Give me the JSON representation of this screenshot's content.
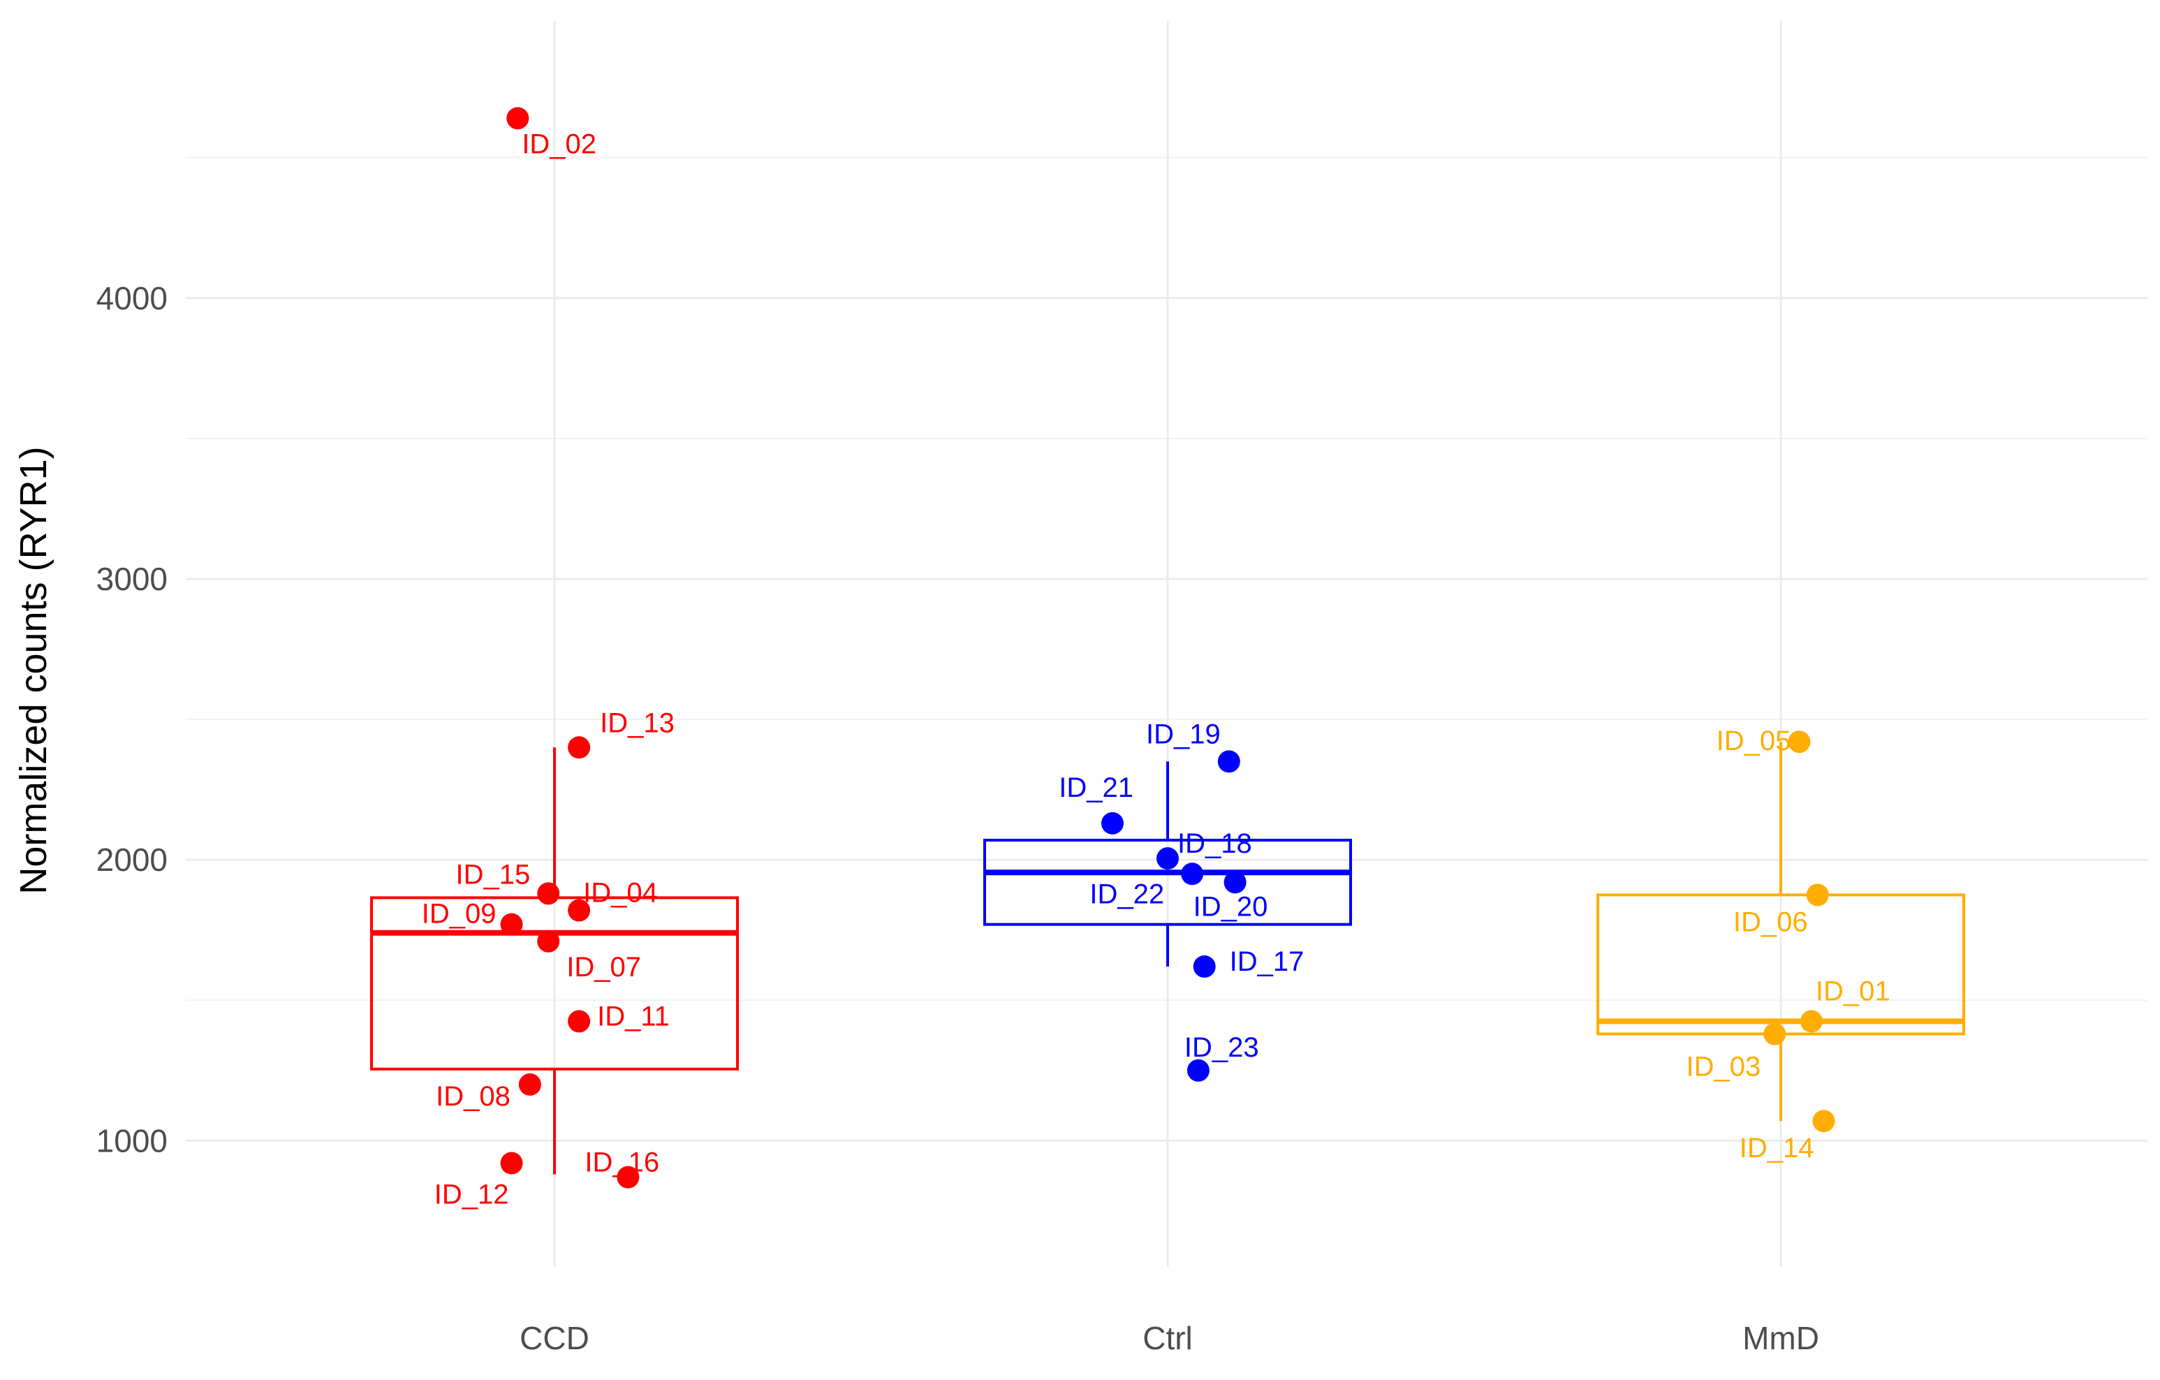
{
  "chart_data": {
    "type": "box",
    "title": "",
    "xlabel": "",
    "ylabel": "Normalized counts (RYR1)",
    "ylim": [
      700,
      4800
    ],
    "yticks": [
      1000,
      2000,
      3000,
      4000
    ],
    "categories": [
      "CCD",
      "Ctrl",
      "MmD"
    ],
    "colors": {
      "CCD": "#ff0000",
      "Ctrl": "#0000ff",
      "MmD": "#ffad00"
    },
    "boxes": [
      {
        "group": "CCD",
        "q1": 1255,
        "median": 1740,
        "q3": 1865,
        "whisker_low": 880,
        "whisker_high": 2400
      },
      {
        "group": "Ctrl",
        "q1": 1770,
        "median": 1955,
        "q3": 2070,
        "whisker_low": 1620,
        "whisker_high": 2350
      },
      {
        "group": "MmD",
        "q1": 1380,
        "median": 1425,
        "q3": 1875,
        "whisker_low": 1070,
        "whisker_high": 2420
      }
    ],
    "points": [
      {
        "group": "CCD",
        "id": "ID_02",
        "value": 4640,
        "jitter": -0.06
      },
      {
        "group": "CCD",
        "id": "ID_13",
        "value": 2400,
        "jitter": 0.04
      },
      {
        "group": "CCD",
        "id": "ID_15",
        "value": 1880,
        "jitter": -0.01
      },
      {
        "group": "CCD",
        "id": "ID_04",
        "value": 1820,
        "jitter": 0.04
      },
      {
        "group": "CCD",
        "id": "ID_09",
        "value": 1770,
        "jitter": -0.07
      },
      {
        "group": "CCD",
        "id": "ID_07",
        "value": 1710,
        "jitter": -0.01
      },
      {
        "group": "CCD",
        "id": "ID_11",
        "value": 1425,
        "jitter": 0.04
      },
      {
        "group": "CCD",
        "id": "ID_08",
        "value": 1200,
        "jitter": -0.04
      },
      {
        "group": "CCD",
        "id": "ID_12",
        "value": 920,
        "jitter": -0.07
      },
      {
        "group": "CCD",
        "id": "ID_16",
        "value": 870,
        "jitter": 0.12
      },
      {
        "group": "Ctrl",
        "id": "ID_19",
        "value": 2350,
        "jitter": 0.1
      },
      {
        "group": "Ctrl",
        "id": "ID_21",
        "value": 2130,
        "jitter": -0.09
      },
      {
        "group": "Ctrl",
        "id": "ID_18",
        "value": 2005,
        "jitter": 0.0
      },
      {
        "group": "Ctrl",
        "id": "ID_22",
        "value": 1950,
        "jitter": 0.04
      },
      {
        "group": "Ctrl",
        "id": "ID_20",
        "value": 1920,
        "jitter": 0.11
      },
      {
        "group": "Ctrl",
        "id": "ID_17",
        "value": 1620,
        "jitter": 0.06
      },
      {
        "group": "Ctrl",
        "id": "ID_23",
        "value": 1250,
        "jitter": 0.05
      },
      {
        "group": "MmD",
        "id": "ID_05",
        "value": 2420,
        "jitter": 0.03
      },
      {
        "group": "MmD",
        "id": "ID_06",
        "value": 1875,
        "jitter": 0.06
      },
      {
        "group": "MmD",
        "id": "ID_01",
        "value": 1425,
        "jitter": 0.05
      },
      {
        "group": "MmD",
        "id": "ID_03",
        "value": 1380,
        "jitter": -0.01
      },
      {
        "group": "MmD",
        "id": "ID_14",
        "value": 1070,
        "jitter": 0.07
      }
    ]
  }
}
